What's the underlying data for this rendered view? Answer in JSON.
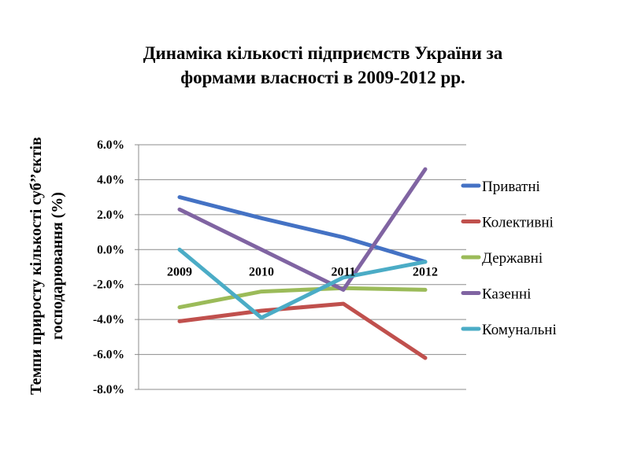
{
  "chart_data": {
    "type": "line",
    "title_lines": [
      "Динаміка кількості підприємств України за",
      "формами власності в 2009-2012 рр."
    ],
    "ylabel_lines": [
      "Темпи приросту кількості суб’’єктів",
      "господарювання (%)"
    ],
    "xlabel": "",
    "categories": [
      "2009",
      "2010",
      "2011",
      "2012"
    ],
    "ylim": [
      -8.0,
      6.0
    ],
    "y_ticks": [
      6.0,
      4.0,
      2.0,
      0.0,
      -2.0,
      -4.0,
      -6.0,
      -8.0
    ],
    "y_tick_labels": [
      "6.0%",
      "4.0%",
      "2.0%",
      "0.0%",
      "-2.0%",
      "-4.0%",
      "-6.0%",
      "-8.0%"
    ],
    "grid": true,
    "legend_position": "right",
    "series": [
      {
        "name": "Приватні",
        "color": "#4472C4",
        "values": [
          3.0,
          1.8,
          0.7,
          -0.7
        ]
      },
      {
        "name": "Колективні",
        "color": "#C0504D",
        "values": [
          -4.1,
          -3.5,
          -3.1,
          -6.2
        ]
      },
      {
        "name": "Державні",
        "color": "#9BBB59",
        "values": [
          -3.3,
          -2.4,
          -2.2,
          -2.3
        ]
      },
      {
        "name": "Казенні",
        "color": "#8064A2",
        "values": [
          2.3,
          0.0,
          -2.3,
          4.6
        ]
      },
      {
        "name": "Комунальні",
        "color": "#4BACC6",
        "values": [
          0.0,
          -3.9,
          -1.6,
          -0.7
        ]
      }
    ]
  }
}
